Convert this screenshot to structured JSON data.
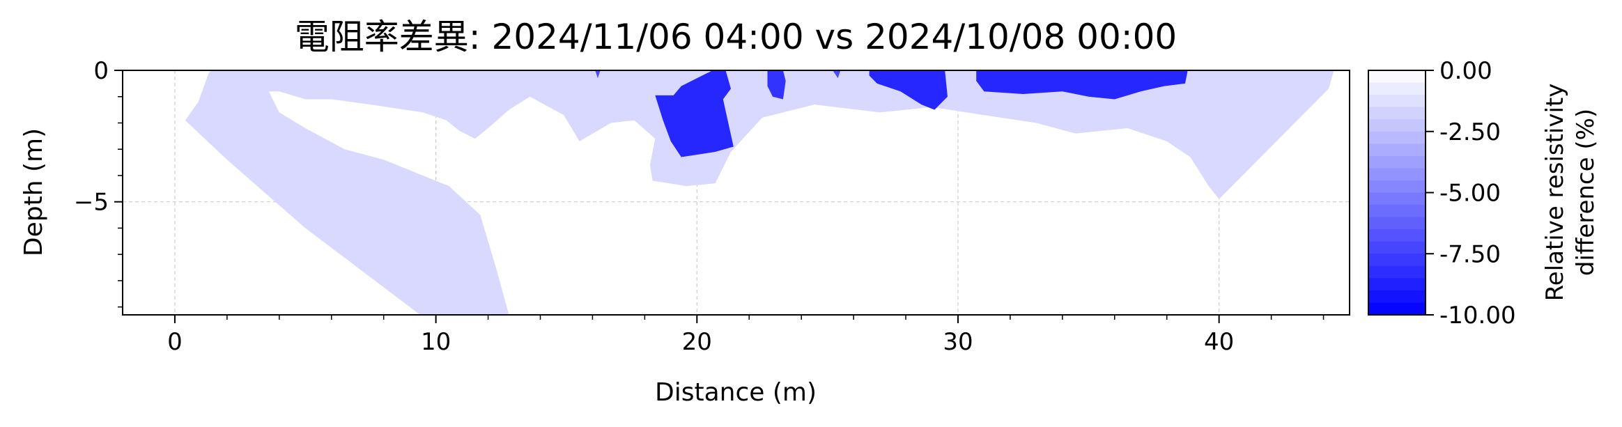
{
  "chart_data": {
    "type": "heatmap",
    "subtype": "filled-contour",
    "title": "電阻率差異: 2024/11/06 04:00 vs 2024/10/08 00:00",
    "xlabel": "Distance (m)",
    "ylabel": "Depth (m)",
    "xlim": [
      -2,
      45
    ],
    "ylim": [
      -9.3,
      0
    ],
    "x_ticks": [
      0,
      10,
      20,
      30,
      40
    ],
    "x_tick_labels": [
      "0",
      "10",
      "20",
      "30",
      "40"
    ],
    "y_ticks": [
      0,
      -5
    ],
    "y_tick_labels": [
      "0",
      "−5"
    ],
    "grid": true,
    "colorbar": {
      "label_lines": [
        "Relative resistivity",
        "difference (%)"
      ],
      "range": [
        -10,
        0
      ],
      "ticks": [
        0,
        -2.5,
        -5,
        -7.5,
        -10
      ],
      "tick_labels": [
        "0.00",
        "-2.50",
        "-5.00",
        "-7.50",
        "-10.00"
      ],
      "color_low": "#0000ff",
      "color_high": "#ffffff",
      "levels": 20
    },
    "regions": [
      {
        "id": "light-envelope",
        "value": -1.5,
        "layer": "back",
        "points": [
          [
            0.4,
            -1.9
          ],
          [
            0.9,
            -1.2
          ],
          [
            1.3,
            -0.1
          ],
          [
            1.4,
            0
          ],
          [
            44.4,
            0
          ],
          [
            44.2,
            -0.7
          ],
          [
            40.0,
            -4.9
          ],
          [
            39.6,
            -4.4
          ],
          [
            38.9,
            -3.3
          ],
          [
            38.0,
            -2.7
          ],
          [
            36.5,
            -2.2
          ],
          [
            34.5,
            -2.4
          ],
          [
            33.0,
            -2.0
          ],
          [
            31.0,
            -1.7
          ],
          [
            29.0,
            -1.4
          ],
          [
            27.0,
            -1.6
          ],
          [
            24.5,
            -1.3
          ],
          [
            22.5,
            -1.8
          ],
          [
            21.3,
            -3.1
          ],
          [
            20.7,
            -4.3
          ],
          [
            19.6,
            -4.4
          ],
          [
            18.3,
            -4.2
          ],
          [
            18.2,
            -3.6
          ],
          [
            18.4,
            -2.6
          ],
          [
            17.6,
            -1.9
          ],
          [
            16.7,
            -2.0
          ],
          [
            15.5,
            -2.7
          ],
          [
            14.9,
            -1.7
          ],
          [
            13.6,
            -1.0
          ],
          [
            12.8,
            -1.5
          ],
          [
            12.0,
            -2.2
          ],
          [
            11.5,
            -2.6
          ],
          [
            10.9,
            -2.3
          ],
          [
            10.4,
            -1.9
          ],
          [
            9.5,
            -1.6
          ],
          [
            7.5,
            -1.3
          ],
          [
            6.0,
            -1.1
          ],
          [
            5.0,
            -1.1
          ],
          [
            4.0,
            -0.8
          ],
          [
            3.6,
            -0.8
          ],
          [
            4.0,
            -1.6
          ],
          [
            5.0,
            -2.2
          ],
          [
            6.5,
            -3.0
          ],
          [
            8.0,
            -3.4
          ],
          [
            10.5,
            -4.4
          ],
          [
            11.7,
            -5.5
          ],
          [
            12.3,
            -7.5
          ],
          [
            12.8,
            -9.3
          ],
          [
            9.4,
            -9.3
          ],
          [
            5.0,
            -6.0
          ],
          [
            2.0,
            -3.4
          ]
        ]
      },
      {
        "id": "core-20m",
        "value": -8.5,
        "layer": "front",
        "points": [
          [
            18.4,
            -0.95
          ],
          [
            19.1,
            -0.95
          ],
          [
            19.4,
            -0.6
          ],
          [
            20.0,
            -0.3
          ],
          [
            20.4,
            -0.1
          ],
          [
            20.6,
            0
          ],
          [
            21.1,
            0
          ],
          [
            21.3,
            -0.7
          ],
          [
            21.0,
            -1.1
          ],
          [
            21.2,
            -2.0
          ],
          [
            21.4,
            -2.9
          ],
          [
            20.7,
            -3.1
          ],
          [
            19.4,
            -3.3
          ],
          [
            19.0,
            -2.7
          ],
          [
            18.7,
            -1.9
          ]
        ]
      },
      {
        "id": "core-23m",
        "value": -8.0,
        "layer": "front",
        "points": [
          [
            22.7,
            0
          ],
          [
            23.3,
            0
          ],
          [
            23.4,
            -0.4
          ],
          [
            23.3,
            -1.1
          ],
          [
            22.9,
            -1.0
          ],
          [
            22.7,
            -0.6
          ]
        ]
      },
      {
        "id": "core-16m",
        "value": -7.0,
        "layer": "front",
        "points": [
          [
            16.1,
            0
          ],
          [
            16.3,
            0
          ],
          [
            16.2,
            -0.3
          ]
        ]
      },
      {
        "id": "core-25m",
        "value": -7.0,
        "layer": "front",
        "points": [
          [
            25.2,
            0
          ],
          [
            25.5,
            0
          ],
          [
            25.4,
            -0.3
          ]
        ]
      },
      {
        "id": "core-27-29m",
        "value": -8.5,
        "layer": "front",
        "points": [
          [
            26.6,
            0
          ],
          [
            29.5,
            0
          ],
          [
            29.6,
            -1.0
          ],
          [
            29.1,
            -1.5
          ],
          [
            28.6,
            -1.3
          ],
          [
            27.8,
            -0.8
          ],
          [
            26.9,
            -0.5
          ],
          [
            26.6,
            -0.2
          ]
        ]
      },
      {
        "id": "core-31-39m",
        "value": -8.5,
        "layer": "front",
        "points": [
          [
            30.7,
            0
          ],
          [
            38.8,
            0
          ],
          [
            38.7,
            -0.5
          ],
          [
            37.9,
            -0.6
          ],
          [
            37.0,
            -0.8
          ],
          [
            36.0,
            -1.1
          ],
          [
            35.0,
            -1.0
          ],
          [
            34.0,
            -0.8
          ],
          [
            32.5,
            -0.9
          ],
          [
            31.0,
            -0.8
          ],
          [
            30.7,
            -0.4
          ]
        ]
      }
    ]
  }
}
